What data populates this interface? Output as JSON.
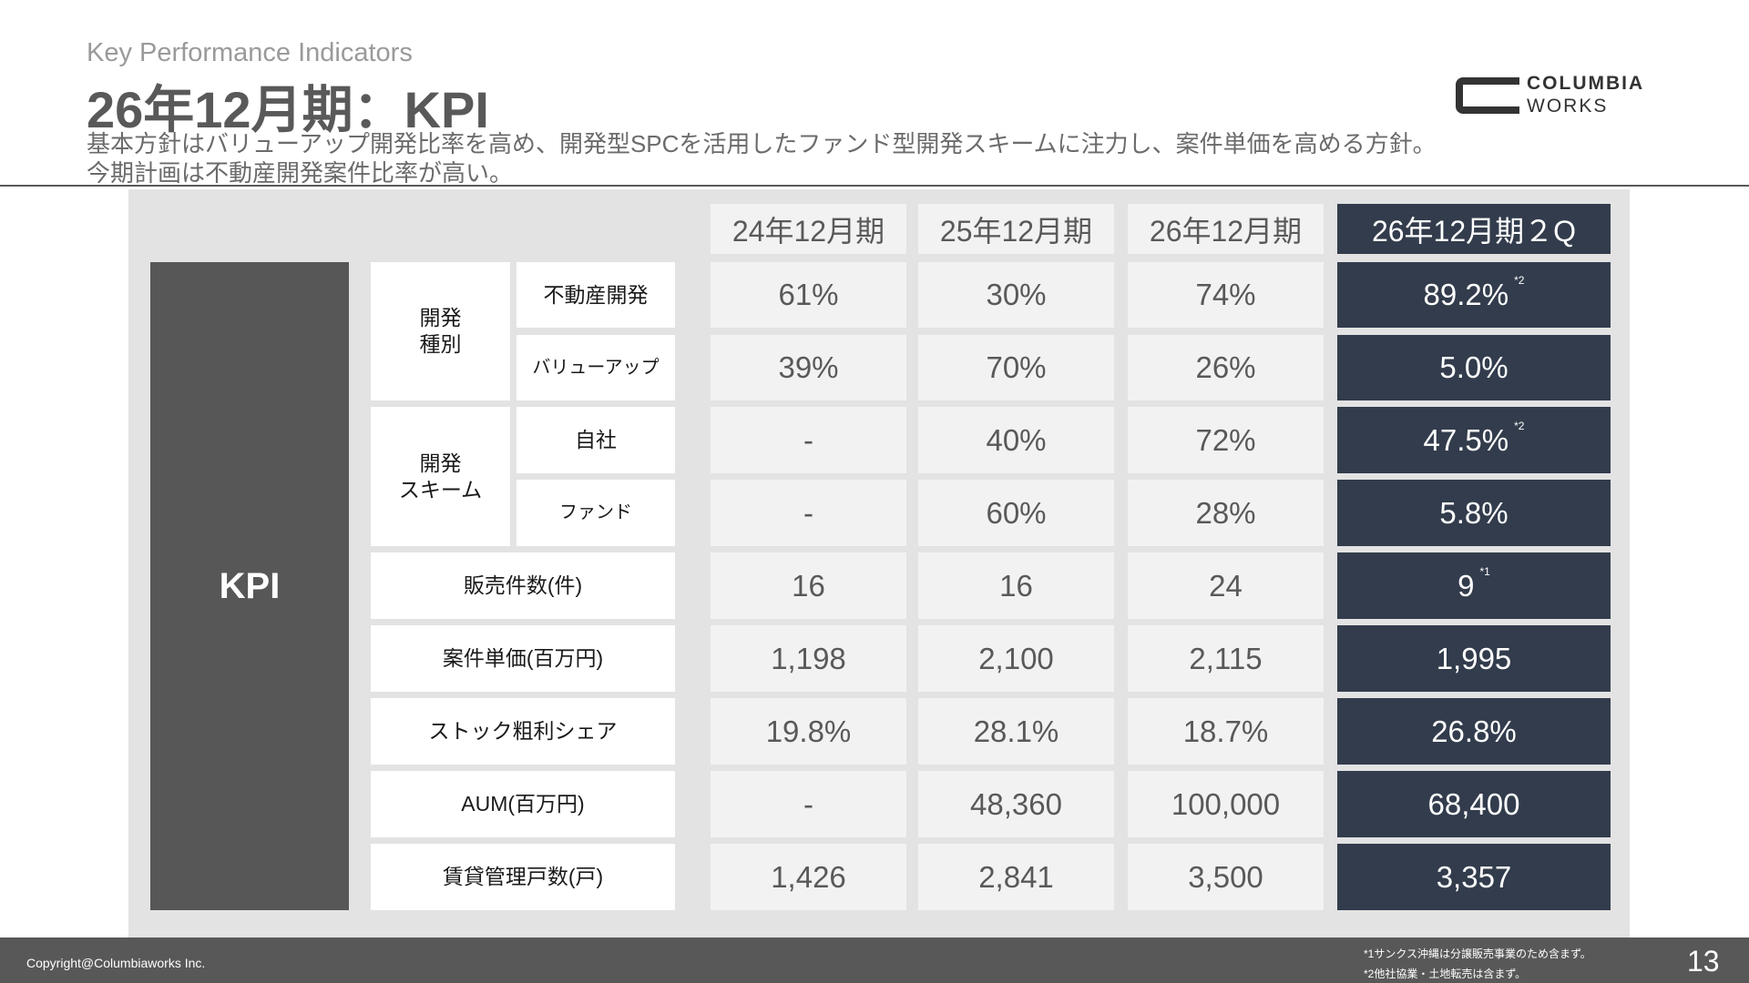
{
  "header": {
    "subtitle_en": "Key Performance Indicators",
    "title": "26年12月期：KPI",
    "description_line1": "基本方針はバリューアップ開発比率を高め、開発型SPCを活用したファンド型開発スキームに注力し、案件単価を高める方針。",
    "description_line2": "今期計画は不動産開発案件比率が高い。"
  },
  "logo": {
    "line1": "COLUMBIA",
    "line2": "WORKS"
  },
  "table": {
    "kpi_label": "KPI",
    "columns": [
      "24年12月期",
      "25年12月期",
      "26年12月期",
      "26年12月期２Q"
    ],
    "groups": {
      "dev_type": "開発\n種別",
      "dev_scheme": "開発\nスキーム"
    },
    "rows": [
      {
        "label": "不動産開発",
        "values": [
          "61%",
          "30%",
          "74%",
          "89.2%"
        ],
        "note": "*2"
      },
      {
        "label": "バリューアップ",
        "values": [
          "39%",
          "70%",
          "26%",
          "5.0%"
        ],
        "note": ""
      },
      {
        "label": "自社",
        "values": [
          "-",
          "40%",
          "72%",
          "47.5%"
        ],
        "note": "*2"
      },
      {
        "label": "ファンド",
        "values": [
          "-",
          "60%",
          "28%",
          "5.8%"
        ],
        "note": ""
      },
      {
        "label": "販売件数(件)",
        "values": [
          "16",
          "16",
          "24",
          "9"
        ],
        "note": "*1"
      },
      {
        "label": "案件単価(百万円)",
        "values": [
          "1,198",
          "2,100",
          "2,115",
          "1,995"
        ],
        "note": ""
      },
      {
        "label": "ストック粗利シェア",
        "values": [
          "19.8%",
          "28.1%",
          "18.7%",
          "26.8%"
        ],
        "note": ""
      },
      {
        "label": "AUM(百万円)",
        "values": [
          "-",
          "48,360",
          "100,000",
          "68,400"
        ],
        "note": ""
      },
      {
        "label": "賃貸管理戸数(戸)",
        "values": [
          "1,426",
          "2,841",
          "3,500",
          "3,357"
        ],
        "note": ""
      }
    ]
  },
  "footer": {
    "copyright": "Copyright@Columbiaworks Inc.",
    "footnote1": "*1サンクス沖縄は分譲販売事業のため含まず。",
    "footnote2": "*2他社協業・土地転売は含まず。",
    "page_number": "13"
  },
  "colors": {
    "dark_column": "#323c4c",
    "kpi_block": "#575757",
    "panel": "#e3e3e3",
    "value_cell": "#f2f2f2"
  }
}
